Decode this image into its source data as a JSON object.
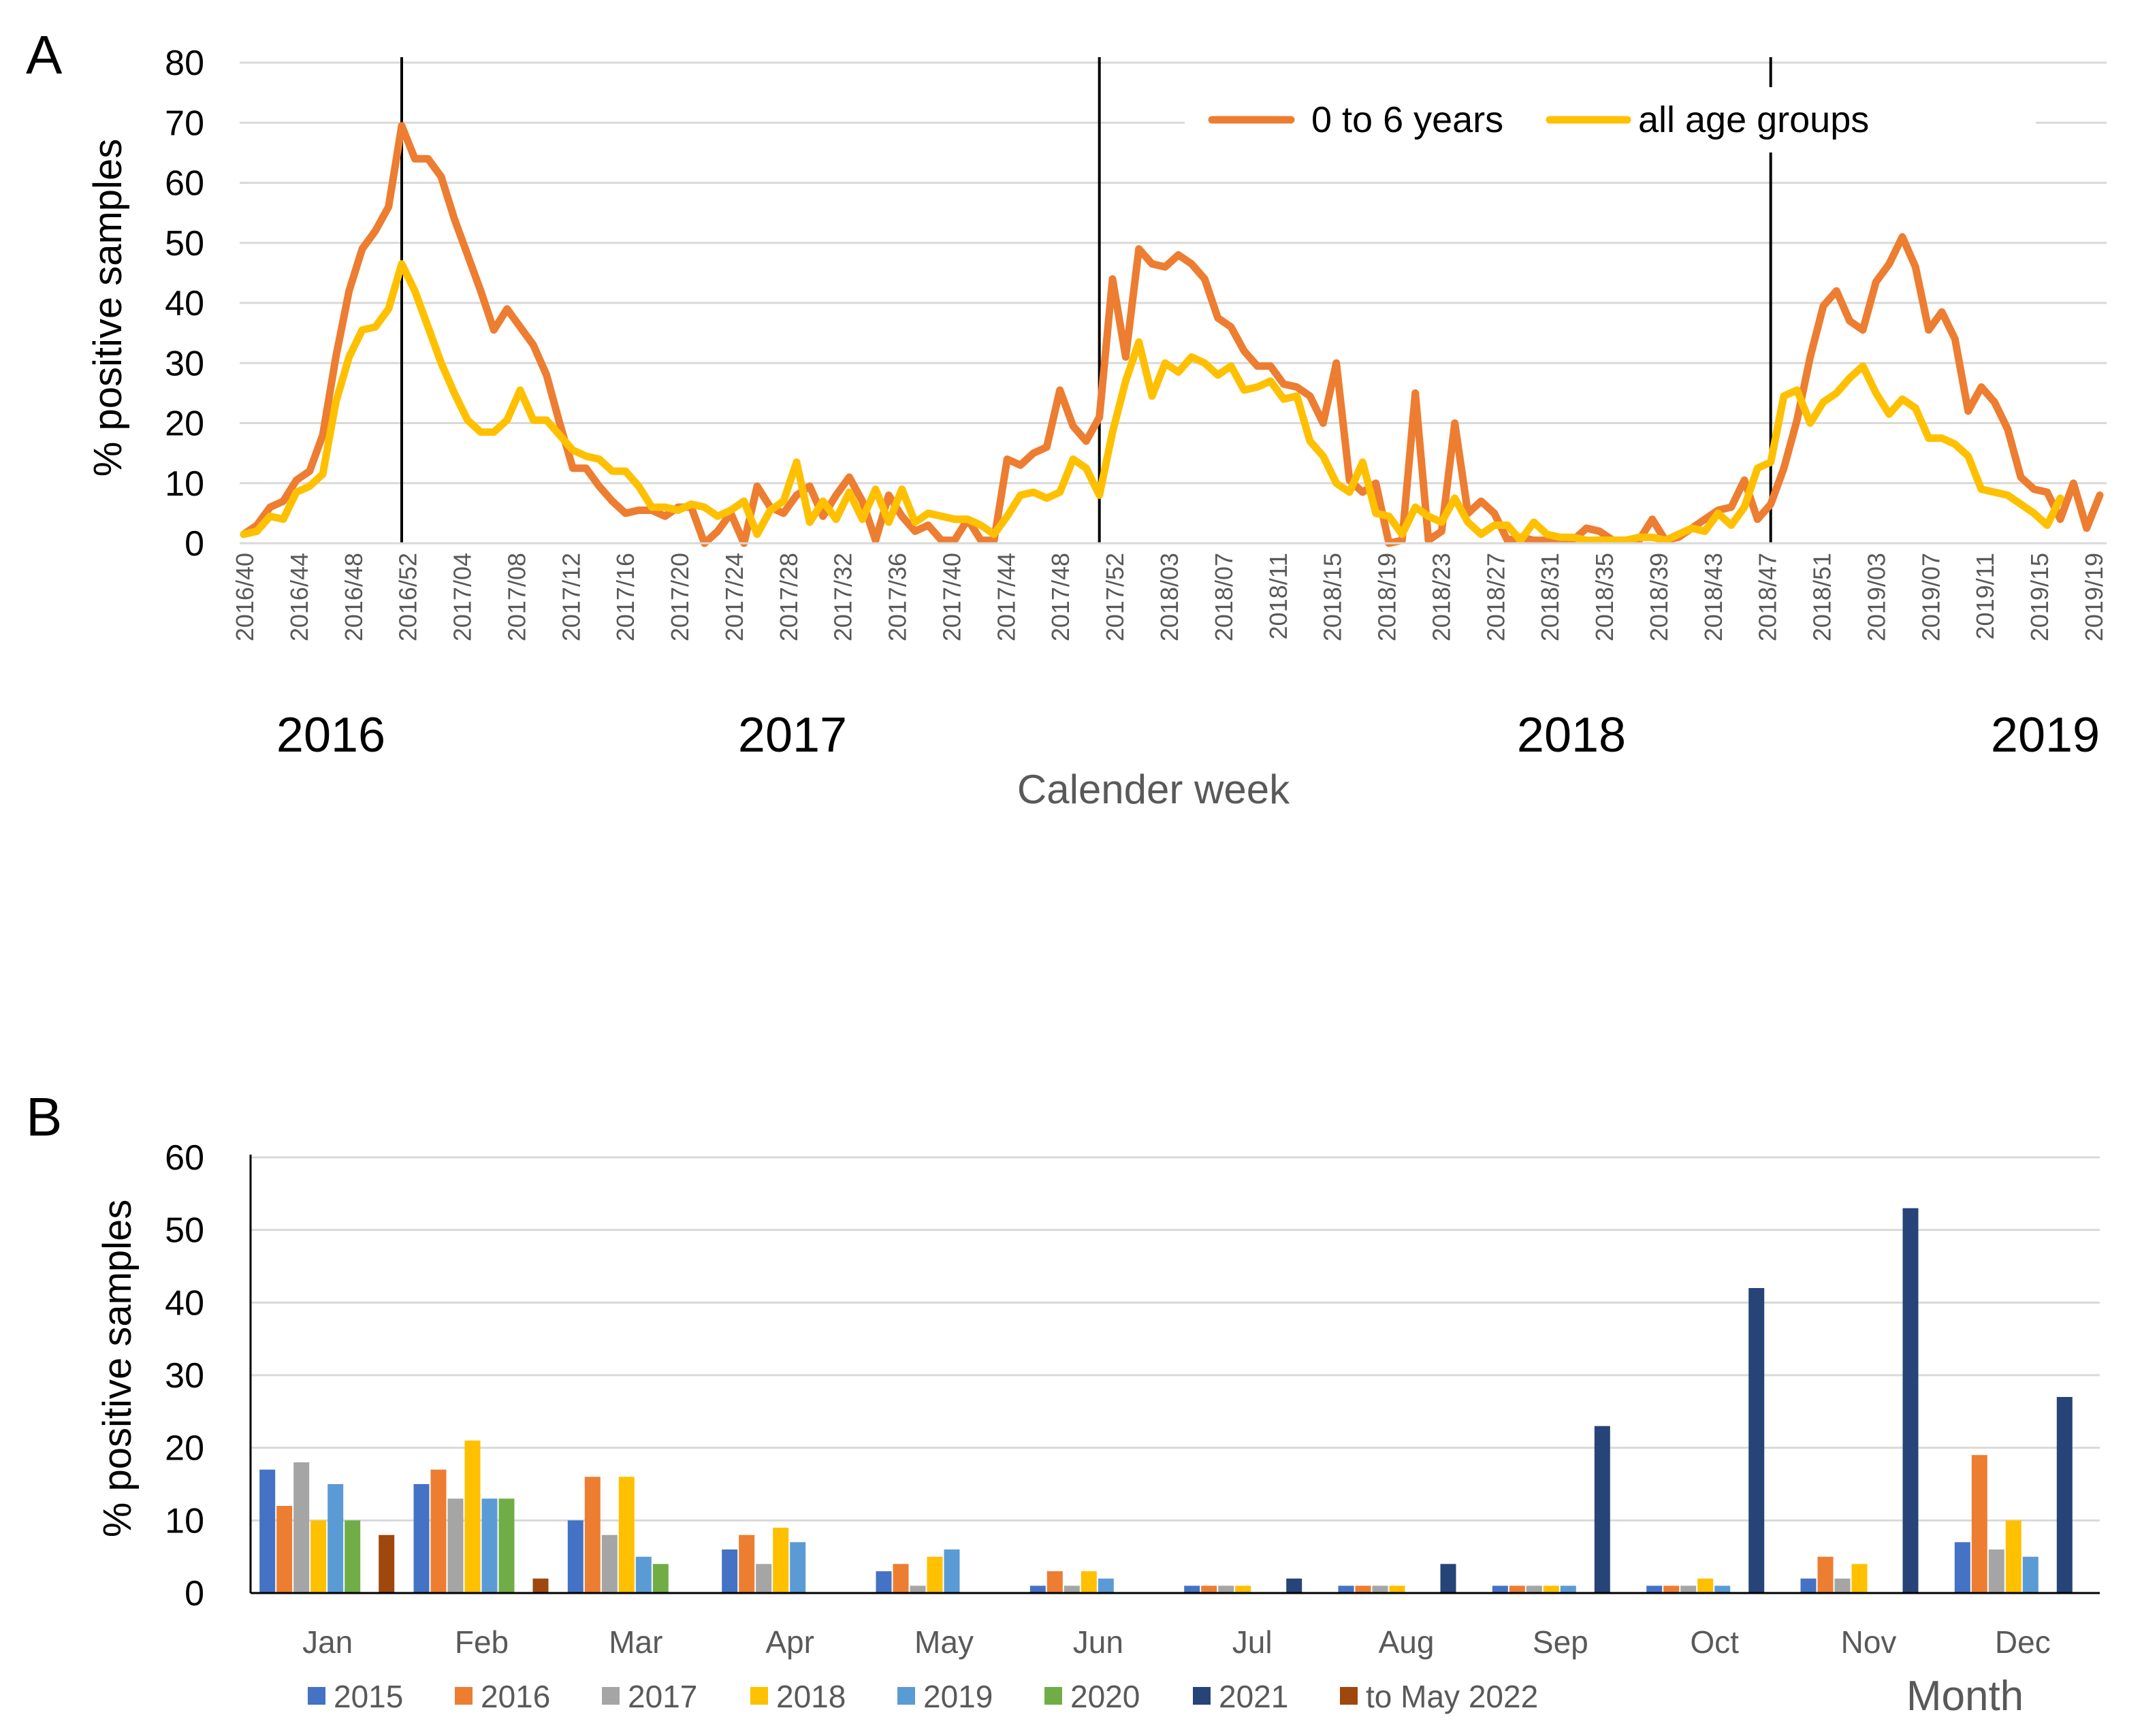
{
  "panels": {
    "a_letter": "A",
    "b_letter": "B"
  },
  "colors": {
    "orange": "#ED7D31",
    "yellow": "#FFC000",
    "c2015": "#4472C4",
    "c2016": "#ED7D31",
    "c2017": "#A5A5A5",
    "c2018": "#FFC000",
    "c2019": "#5B9BD5",
    "c2020": "#70AD47",
    "c2021": "#264478",
    "c2022": "#9E480E",
    "grid": "#D9D9D9"
  },
  "chart_data": [
    {
      "type": "line",
      "panel": "A",
      "title": "",
      "xlabel": "Calender week",
      "ylabel": "% positive samples",
      "ylim": [
        0,
        80
      ],
      "yticks": [
        "0",
        "10",
        "20",
        "30",
        "40",
        "50",
        "60",
        "70",
        "80"
      ],
      "x_tick_labels": [
        "2016/40",
        "2016/44",
        "2016/48",
        "2016/52",
        "2017/04",
        "2017/08",
        "2017/12",
        "2017/16",
        "2017/20",
        "2017/24",
        "2017/28",
        "2017/32",
        "2017/36",
        "2017/40",
        "2017/44",
        "2017/48",
        "2017/52",
        "2018/03",
        "2018/07",
        "2018/11",
        "2018/15",
        "2018/19",
        "2018/23",
        "2018/27",
        "2018/31",
        "2018/35",
        "2018/39",
        "2018/43",
        "2018/47",
        "2018/51",
        "2019/03",
        "2019/07",
        "2019/11",
        "2019/15",
        "2019/19"
      ],
      "year_labels": [
        "2016",
        "2017",
        "2018",
        "2019"
      ],
      "season_markers_week_index": [
        12,
        65,
        116
      ],
      "legend_position": "top-right",
      "series": [
        {
          "name": "0 to 6 years",
          "color": "#ED7D31",
          "values": [
            1.5,
            3,
            6,
            7,
            10.5,
            12,
            18,
            31,
            42,
            49,
            52,
            56,
            69.5,
            64,
            64,
            61,
            54,
            48,
            42,
            35.5,
            39,
            36,
            33,
            28,
            20,
            12.5,
            12.5,
            9.5,
            7,
            5,
            5.5,
            5.5,
            4.5,
            6,
            6,
            0,
            2,
            5,
            0,
            9.5,
            6,
            5,
            8,
            9.5,
            4.5,
            8,
            11,
            7,
            0.5,
            8,
            4.5,
            2,
            3,
            0.5,
            0.5,
            4,
            0.5,
            0.5,
            14,
            13,
            15,
            16,
            25.5,
            19.5,
            17,
            21,
            44,
            31,
            49,
            46.5,
            46,
            48,
            46.5,
            44,
            37.5,
            36,
            32,
            29.5,
            29.5,
            26.5,
            26,
            24.5,
            20,
            30,
            10.5,
            8.5,
            10,
            0,
            0.5,
            25,
            0.5,
            2,
            20,
            5,
            7,
            5,
            0.5,
            1,
            0.5,
            0.5,
            0.5,
            0.5,
            2.5,
            2,
            0.5,
            0.5,
            0.5,
            4,
            0.5,
            1,
            2.5,
            4,
            5.5,
            6,
            10.5,
            4,
            6.5,
            12.5,
            20.5,
            31,
            39.5,
            42,
            37,
            35.5,
            43.5,
            46.5,
            51,
            46,
            35.5,
            38.5,
            34,
            22,
            26,
            23.5,
            19,
            11,
            9,
            8.5,
            4,
            10,
            2.5,
            8
          ]
        },
        {
          "name": "all age groups",
          "color": "#FFC000",
          "values": [
            1.5,
            2,
            4.5,
            4,
            8.5,
            9.5,
            11.5,
            23.5,
            31,
            35.5,
            36,
            39,
            46.5,
            42,
            36,
            30,
            25,
            20.5,
            18.5,
            18.5,
            20.5,
            25.5,
            20.5,
            20.5,
            18,
            15.5,
            14.5,
            14,
            12,
            12,
            9.5,
            6,
            6,
            5.5,
            6.5,
            6,
            4.5,
            5.5,
            7,
            1.5,
            5.5,
            7,
            13.5,
            3.5,
            7,
            4,
            8.5,
            4,
            9,
            3.5,
            9,
            3.5,
            5,
            4.5,
            4,
            4,
            3,
            1.5,
            4.5,
            8,
            8.5,
            7.5,
            8.5,
            14,
            12.5,
            8,
            18.5,
            27,
            33.5,
            24.5,
            30,
            28.5,
            31,
            30,
            28,
            29.5,
            25.5,
            26,
            27,
            24,
            24.5,
            17,
            14.5,
            10,
            8.5,
            13.5,
            5,
            4.5,
            1.5,
            6,
            4.5,
            3.5,
            7.5,
            3.5,
            1.5,
            3,
            3,
            0.5,
            3.5,
            1.5,
            1,
            1,
            0.5,
            0.5,
            0.5,
            0.5,
            1,
            1,
            0.5,
            1.5,
            2.5,
            2,
            5,
            3,
            6,
            12.5,
            13.5,
            24.5,
            25.5,
            20,
            23.5,
            25,
            27.5,
            29.5,
            25,
            21.5,
            24,
            22.5,
            17.5,
            17.5,
            16.5,
            14.5,
            9,
            8.5,
            8,
            6.5,
            5,
            3,
            7.5
          ]
        }
      ]
    },
    {
      "type": "bar",
      "panel": "B",
      "title": "",
      "xlabel": "Month",
      "ylabel": "% positive samples",
      "ylim": [
        0,
        60
      ],
      "yticks": [
        "0",
        "10",
        "20",
        "30",
        "40",
        "50",
        "60"
      ],
      "categories": [
        "Jan",
        "Feb",
        "Mar",
        "Apr",
        "May",
        "Jun",
        "Jul",
        "Aug",
        "Sep",
        "Oct",
        "Nov",
        "Dec"
      ],
      "legend_position": "bottom",
      "series": [
        {
          "name": "2015",
          "color": "#4472C4",
          "values": [
            17,
            15,
            10,
            6,
            3,
            1,
            1,
            1,
            1,
            1,
            2,
            7
          ]
        },
        {
          "name": "2016",
          "color": "#ED7D31",
          "values": [
            12,
            17,
            16,
            8,
            4,
            3,
            1,
            1,
            1,
            1,
            5,
            19
          ]
        },
        {
          "name": "2017",
          "color": "#A5A5A5",
          "values": [
            18,
            13,
            8,
            4,
            1,
            1,
            1,
            1,
            1,
            1,
            2,
            6
          ]
        },
        {
          "name": "2018",
          "color": "#FFC000",
          "values": [
            10,
            21,
            16,
            9,
            5,
            3,
            1,
            1,
            1,
            2,
            4,
            10
          ]
        },
        {
          "name": "2019",
          "color": "#5B9BD5",
          "values": [
            15,
            13,
            5,
            7,
            6,
            2,
            0,
            0,
            1,
            1,
            0,
            5
          ]
        },
        {
          "name": "2020",
          "color": "#70AD47",
          "values": [
            10,
            13,
            4,
            0,
            0,
            0,
            0,
            0,
            0,
            0,
            0,
            0
          ]
        },
        {
          "name": "2021",
          "color": "#264478",
          "values": [
            0,
            0,
            0,
            0,
            0,
            0,
            2,
            4,
            23,
            42,
            53,
            27
          ]
        },
        {
          "name": "to May 2022",
          "color": "#9E480E",
          "values": [
            8,
            2,
            0,
            0,
            0,
            null,
            null,
            null,
            null,
            null,
            null,
            null
          ]
        }
      ]
    }
  ]
}
